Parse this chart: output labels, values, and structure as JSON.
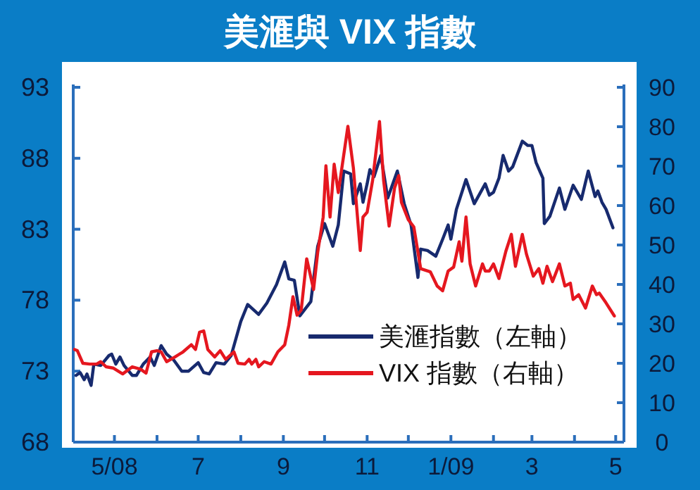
{
  "chart_data": {
    "type": "line",
    "title": "美滙與 VIX 指數",
    "xlim": [
      "2008-04-01",
      "2009-05-07"
    ],
    "xticks": [
      {
        "value": "2008-05-01",
        "label": "5/08"
      },
      {
        "value": "2008-06-01",
        "label": null
      },
      {
        "value": "2008-07-01",
        "label": "7"
      },
      {
        "value": "2008-08-01",
        "label": null
      },
      {
        "value": "2008-09-01",
        "label": "9"
      },
      {
        "value": "2008-10-01",
        "label": null
      },
      {
        "value": "2008-11-01",
        "label": "11"
      },
      {
        "value": "2008-12-01",
        "label": null
      },
      {
        "value": "2009-01-01",
        "label": "1/09"
      },
      {
        "value": "2009-02-01",
        "label": null
      },
      {
        "value": "2009-03-01",
        "label": "3"
      },
      {
        "value": "2009-04-01",
        "label": null
      },
      {
        "value": "2009-05-01",
        "label": "5"
      }
    ],
    "ylim": [
      68,
      93
    ],
    "yticks": [
      68,
      73,
      78,
      83,
      88,
      93
    ],
    "y2lim": [
      0,
      90
    ],
    "y2ticks": [
      0,
      10,
      20,
      30,
      40,
      50,
      60,
      70,
      80,
      90
    ],
    "legend": "bottom right",
    "series": [
      {
        "name": "美滙指數（左軸）",
        "color": "#172a6e",
        "x": [
          "2008-04-03",
          "2008-04-06",
          "2008-04-09",
          "2008-04-11",
          "2008-04-14",
          "2008-04-16",
          "2008-04-21",
          "2008-04-27",
          "2008-04-29",
          "2008-05-02",
          "2008-05-05",
          "2008-05-08",
          "2008-05-14",
          "2008-05-17",
          "2008-05-22",
          "2008-05-27",
          "2008-05-30",
          "2008-06-04",
          "2008-06-08",
          "2008-06-13",
          "2008-06-19",
          "2008-06-24",
          "2008-07-01",
          "2008-07-05",
          "2008-07-09",
          "2008-07-14",
          "2008-07-20",
          "2008-07-25",
          "2008-08-01",
          "2008-08-06",
          "2008-08-14",
          "2008-08-20",
          "2008-08-27",
          "2008-09-02",
          "2008-09-05",
          "2008-09-09",
          "2008-09-13",
          "2008-09-21",
          "2008-09-26",
          "2008-10-01",
          "2008-10-07",
          "2008-10-11",
          "2008-10-15",
          "2008-10-20",
          "2008-10-22",
          "2008-10-27",
          "2008-10-29",
          "2008-11-01",
          "2008-11-03",
          "2008-11-06",
          "2008-11-11",
          "2008-11-16",
          "2008-11-23",
          "2008-11-28",
          "2008-12-03",
          "2008-12-08",
          "2008-12-10",
          "2008-12-15",
          "2008-12-21",
          "2008-12-26",
          "2008-12-30",
          "2009-01-01",
          "2009-01-05",
          "2009-01-12",
          "2009-01-18",
          "2009-01-26",
          "2009-01-29",
          "2009-02-01",
          "2009-02-05",
          "2009-02-08",
          "2009-02-12",
          "2009-02-15",
          "2009-02-22",
          "2009-02-26",
          "2009-03-01",
          "2009-03-04",
          "2009-03-09",
          "2009-03-10",
          "2009-03-14",
          "2009-03-21",
          "2009-03-25",
          "2009-03-31",
          "2009-04-06",
          "2009-04-11",
          "2009-04-16",
          "2009-04-18",
          "2009-04-21",
          "2009-04-24",
          "2009-04-29"
        ],
        "values": [
          72.7,
          72.9,
          72.4,
          72.8,
          72.0,
          73.5,
          73.4,
          74.1,
          74.2,
          73.5,
          74.0,
          73.4,
          72.7,
          72.7,
          73.5,
          74.0,
          73.4,
          74.8,
          74.2,
          73.8,
          73.0,
          73.0,
          73.6,
          72.9,
          72.8,
          73.6,
          73.5,
          74.1,
          76.5,
          77.7,
          77.0,
          77.8,
          79.1,
          80.7,
          79.5,
          79.4,
          76.9,
          77.9,
          81.8,
          83.4,
          81.8,
          83.3,
          87.1,
          86.9,
          84.8,
          86.2,
          84.9,
          86.2,
          87.2,
          86.7,
          88.2,
          85.2,
          87.1,
          84.8,
          83.3,
          79.6,
          81.6,
          81.5,
          81.1,
          82.3,
          83.3,
          82.3,
          84.4,
          86.5,
          84.8,
          86.2,
          85.4,
          85.6,
          86.6,
          88.2,
          87.1,
          87.4,
          89.2,
          88.9,
          88.9,
          87.7,
          86.6,
          83.4,
          83.9,
          85.9,
          84.4,
          86.1,
          85.1,
          87.1,
          85.3,
          85.7,
          84.9,
          84.4,
          83.1
        ]
      },
      {
        "name": "VIX 指數（右軸）",
        "color": "#e5171f",
        "axis": "y2",
        "x": [
          "2008-04-02",
          "2008-04-04",
          "2008-04-08",
          "2008-04-13",
          "2008-04-18",
          "2008-04-21",
          "2008-04-25",
          "2008-04-30",
          "2008-05-07",
          "2008-05-14",
          "2008-05-20",
          "2008-05-24",
          "2008-05-28",
          "2008-06-01",
          "2008-06-04",
          "2008-06-08",
          "2008-06-14",
          "2008-06-20",
          "2008-06-26",
          "2008-06-29",
          "2008-07-02",
          "2008-07-05",
          "2008-07-08",
          "2008-07-13",
          "2008-07-17",
          "2008-07-21",
          "2008-07-27",
          "2008-07-30",
          "2008-08-04",
          "2008-08-07",
          "2008-08-09",
          "2008-08-12",
          "2008-08-14",
          "2008-08-18",
          "2008-08-23",
          "2008-08-28",
          "2008-09-02",
          "2008-09-05",
          "2008-09-08",
          "2008-09-11",
          "2008-09-14",
          "2008-09-18",
          "2008-09-23",
          "2008-09-26",
          "2008-09-30",
          "2008-10-02",
          "2008-10-05",
          "2008-10-08",
          "2008-10-11",
          "2008-10-18",
          "2008-10-22",
          "2008-10-27",
          "2008-10-29",
          "2008-11-01",
          "2008-11-05",
          "2008-11-10",
          "2008-11-13",
          "2008-11-17",
          "2008-11-21",
          "2008-11-24",
          "2008-11-26",
          "2008-12-01",
          "2008-12-05",
          "2008-12-10",
          "2008-12-17",
          "2008-12-22",
          "2008-12-26",
          "2008-12-30",
          "2009-01-03",
          "2009-01-07",
          "2009-01-09",
          "2009-01-12",
          "2009-01-15",
          "2009-01-19",
          "2009-01-24",
          "2009-01-26",
          "2009-01-29",
          "2009-02-01",
          "2009-02-05",
          "2009-02-10",
          "2009-02-14",
          "2009-02-17",
          "2009-02-22",
          "2009-02-25",
          "2009-03-02",
          "2009-03-06",
          "2009-03-09",
          "2009-03-12",
          "2009-03-16",
          "2009-03-21",
          "2009-03-25",
          "2009-03-29",
          "2009-03-31",
          "2009-04-04",
          "2009-04-09",
          "2009-04-14",
          "2009-04-17",
          "2009-04-19",
          "2009-04-24",
          "2009-04-30"
        ],
        "values": [
          23.5,
          23.2,
          20.0,
          19.8,
          19.8,
          20.4,
          19.1,
          18.8,
          17.3,
          19.1,
          18.5,
          17.5,
          22.9,
          23.2,
          22.9,
          20.4,
          21.6,
          22.9,
          24.7,
          23.5,
          27.9,
          28.2,
          23.5,
          21.6,
          23.2,
          21.0,
          22.9,
          20.0,
          19.8,
          21.0,
          19.8,
          21.0,
          19.1,
          20.4,
          19.8,
          22.9,
          24.7,
          29.7,
          36.9,
          32.2,
          33.5,
          46.5,
          38.7,
          48.1,
          57.1,
          70.1,
          57.1,
          70.5,
          63.3,
          80.1,
          69.5,
          48.6,
          57.1,
          58.3,
          66.4,
          81.3,
          66.4,
          54.8,
          64.5,
          67.6,
          60.8,
          56.4,
          54.6,
          44.0,
          43.2,
          39.6,
          38.4,
          43.4,
          44.4,
          50.8,
          45.9,
          57.1,
          45.2,
          39.6,
          45.2,
          43.4,
          43.4,
          45.2,
          41.5,
          48.4,
          52.7,
          44.6,
          52.7,
          47.7,
          42.1,
          44.0,
          40.3,
          44.6,
          40.7,
          45.2,
          39.6,
          40.3,
          36.2,
          37.4,
          34.0,
          39.6,
          37.4,
          37.8,
          35.3,
          32.0
        ]
      }
    ]
  }
}
